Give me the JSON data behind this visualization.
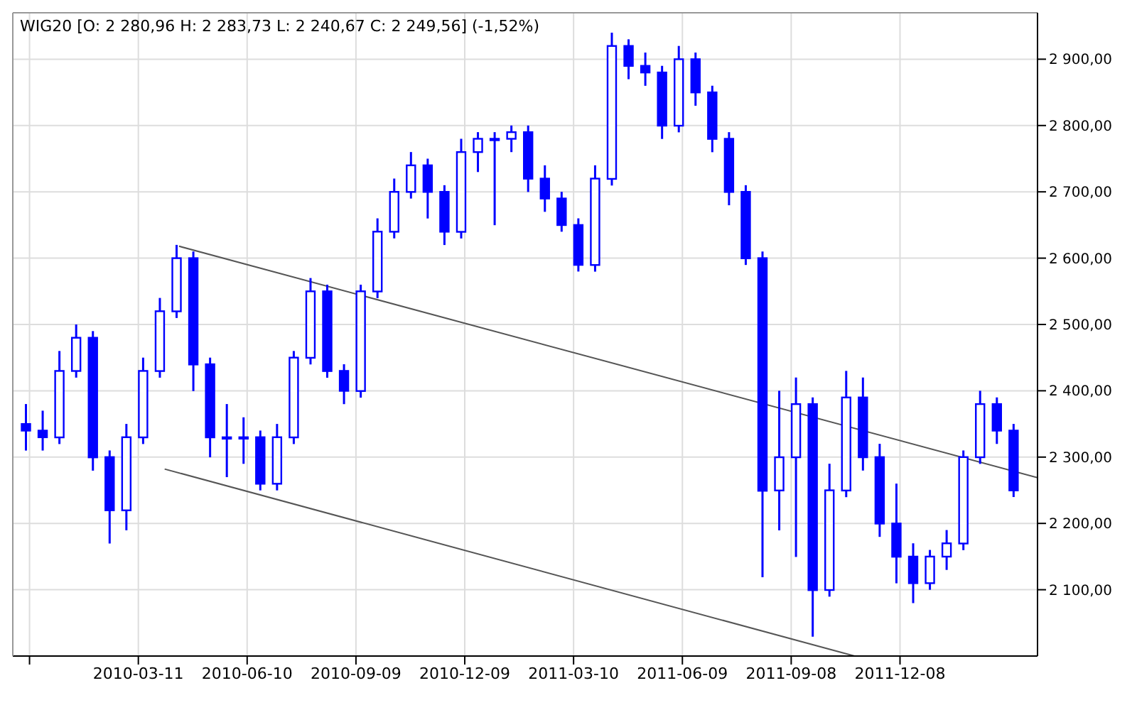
{
  "chart_data": {
    "type": "candlestick",
    "title": "WIG20 [O: 2 280,96 H: 2 283,73 L: 2 240,67 C: 2 249,56] (-1,52%)",
    "xlim": [
      "2009-11-26",
      "2012-04-01"
    ],
    "xticks": [
      {
        "value": "2009-12-10",
        "label": null
      },
      "2010-03-11",
      "2010-06-10",
      "2010-09-09",
      "2010-12-09",
      "2011-03-10",
      "2011-06-09",
      "2011-09-08",
      "2011-12-08"
    ],
    "ylim": [
      2000,
      2970
    ],
    "yticks": [
      {
        "value": 2100,
        "label": "2 100,00"
      },
      {
        "value": 2200,
        "label": "2 200,00"
      },
      {
        "value": 2300,
        "label": "2 300,00"
      },
      {
        "value": 2400,
        "label": "2 400,00"
      },
      {
        "value": 2500,
        "label": "2 500,00"
      },
      {
        "value": 2600,
        "label": "2 600,00"
      },
      {
        "value": 2700,
        "label": "2 700,00"
      },
      {
        "value": 2800,
        "label": "2 800,00"
      },
      {
        "value": 2900,
        "label": "2 900,00"
      }
    ],
    "grid": true,
    "series": [
      {
        "color": "#0000ff",
        "x": [
          "2009-12-07",
          "2009-12-21",
          "2010-01-04",
          "2010-01-18",
          "2010-02-01",
          "2010-02-15",
          "2010-03-01",
          "2010-03-15",
          "2010-03-29",
          "2010-04-12",
          "2010-04-26",
          "2010-05-10",
          "2010-05-24",
          "2010-06-07",
          "2010-06-21",
          "2010-07-05",
          "2010-07-19",
          "2010-08-02",
          "2010-08-16",
          "2010-08-30",
          "2010-09-13",
          "2010-09-27",
          "2010-10-11",
          "2010-10-25",
          "2010-11-08",
          "2010-11-22",
          "2010-12-06",
          "2010-12-20",
          "2011-01-03",
          "2011-01-17",
          "2011-01-31",
          "2011-02-14",
          "2011-02-28",
          "2011-03-14",
          "2011-03-28",
          "2011-04-11",
          "2011-04-25",
          "2011-05-09",
          "2011-05-23",
          "2011-06-06",
          "2011-06-20",
          "2011-07-04",
          "2011-07-18",
          "2011-08-01",
          "2011-08-15",
          "2011-08-29",
          "2011-09-12",
          "2011-09-26",
          "2011-10-10",
          "2011-10-24",
          "2011-11-07",
          "2011-11-21",
          "2011-12-05",
          "2011-12-19",
          "2012-01-02",
          "2012-01-16",
          "2012-01-30",
          "2012-02-13",
          "2012-02-27",
          "2012-03-12"
        ],
        "ohlc": [
          [
            2350,
            2380,
            2310,
            2340
          ],
          [
            2340,
            2370,
            2310,
            2330
          ],
          [
            2330,
            2460,
            2320,
            2430
          ],
          [
            2430,
            2500,
            2420,
            2480
          ],
          [
            2480,
            2490,
            2280,
            2300
          ],
          [
            2300,
            2310,
            2170,
            2220
          ],
          [
            2220,
            2350,
            2190,
            2330
          ],
          [
            2330,
            2450,
            2320,
            2430
          ],
          [
            2430,
            2540,
            2420,
            2520
          ],
          [
            2520,
            2620,
            2510,
            2600
          ],
          [
            2600,
            2610,
            2400,
            2440
          ],
          [
            2440,
            2450,
            2300,
            2330
          ],
          [
            2330,
            2380,
            2270,
            2330
          ],
          [
            2330,
            2360,
            2290,
            2330
          ],
          [
            2330,
            2340,
            2250,
            2260
          ],
          [
            2260,
            2350,
            2250,
            2330
          ],
          [
            2330,
            2460,
            2320,
            2450
          ],
          [
            2450,
            2570,
            2440,
            2550
          ],
          [
            2550,
            2560,
            2420,
            2430
          ],
          [
            2430,
            2440,
            2380,
            2400
          ],
          [
            2400,
            2560,
            2390,
            2550
          ],
          [
            2550,
            2660,
            2540,
            2640
          ],
          [
            2640,
            2720,
            2630,
            2700
          ],
          [
            2700,
            2760,
            2690,
            2740
          ],
          [
            2740,
            2750,
            2660,
            2700
          ],
          [
            2700,
            2710,
            2620,
            2640
          ],
          [
            2640,
            2780,
            2630,
            2760
          ],
          [
            2760,
            2790,
            2730,
            2780
          ],
          [
            2780,
            2790,
            2650,
            2780
          ],
          [
            2780,
            2800,
            2760,
            2790
          ],
          [
            2790,
            2800,
            2700,
            2720
          ],
          [
            2720,
            2740,
            2670,
            2690
          ],
          [
            2690,
            2700,
            2640,
            2650
          ],
          [
            2650,
            2660,
            2580,
            2590
          ],
          [
            2590,
            2740,
            2580,
            2720
          ],
          [
            2720,
            2940,
            2710,
            2920
          ],
          [
            2920,
            2930,
            2870,
            2890
          ],
          [
            2890,
            2910,
            2860,
            2880
          ],
          [
            2880,
            2890,
            2780,
            2800
          ],
          [
            2800,
            2920,
            2790,
            2900
          ],
          [
            2900,
            2910,
            2830,
            2850
          ],
          [
            2850,
            2860,
            2760,
            2780
          ],
          [
            2780,
            2790,
            2680,
            2700
          ],
          [
            2700,
            2710,
            2590,
            2600
          ],
          [
            2600,
            2610,
            2120,
            2250
          ],
          [
            2250,
            2400,
            2190,
            2300
          ],
          [
            2300,
            2420,
            2150,
            2380
          ],
          [
            2380,
            2390,
            2030,
            2100
          ],
          [
            2100,
            2290,
            2090,
            2250
          ],
          [
            2250,
            2430,
            2240,
            2390
          ],
          [
            2390,
            2420,
            2280,
            2300
          ],
          [
            2300,
            2320,
            2180,
            2200
          ],
          [
            2200,
            2260,
            2110,
            2150
          ],
          [
            2150,
            2170,
            2080,
            2110
          ],
          [
            2110,
            2160,
            2100,
            2150
          ],
          [
            2150,
            2190,
            2130,
            2170
          ],
          [
            2170,
            2310,
            2160,
            2300
          ],
          [
            2300,
            2400,
            2290,
            2380
          ],
          [
            2380,
            2390,
            2320,
            2340
          ],
          [
            2340,
            2350,
            2240,
            2250
          ]
        ]
      },
      {
        "type": "line",
        "color": "#555555",
        "x": [
          "2010-04-14",
          "2012-04-01"
        ],
        "values": [
          2618,
          2269
        ]
      },
      {
        "type": "line",
        "color": "#555555",
        "x": [
          "2010-04-02",
          "2011-10-31"
        ],
        "values": [
          2282,
          2000
        ]
      }
    ]
  }
}
